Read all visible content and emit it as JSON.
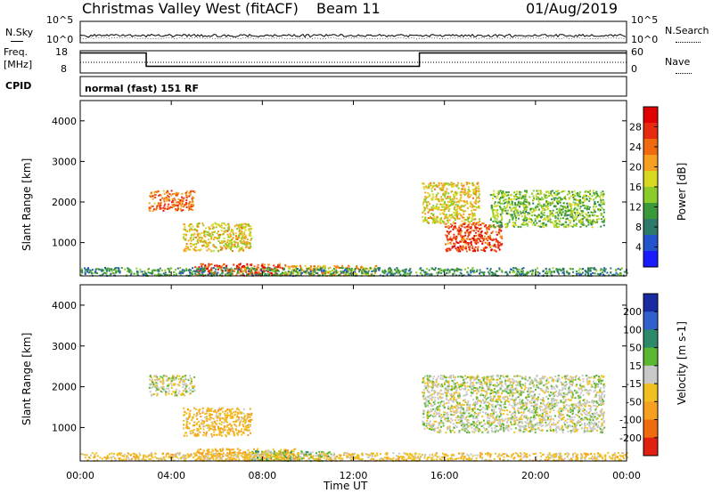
{
  "header": {
    "station": "Christmas Valley West (fitACF)",
    "beam": "Beam 11",
    "date": "01/Aug/2019"
  },
  "strips": {
    "nsky": {
      "label": "N.Sky",
      "left_ticks": [
        "10^5",
        "10^0"
      ],
      "right_label": "N.Search",
      "right_ticks": [
        "10^5",
        "10^0"
      ]
    },
    "freq": {
      "label_line1": "Freq.",
      "label_line2": "[MHz]",
      "left_ticks": [
        "18",
        "8"
      ],
      "right_label": "Nave",
      "right_ticks": [
        "60",
        "0"
      ],
      "steps": [
        [
          0.0,
          17.0
        ],
        [
          2.9,
          11.0
        ],
        [
          14.9,
          17.0
        ],
        [
          24.0,
          17.0
        ]
      ]
    },
    "cpid": {
      "label": "CPID",
      "value": "normal (fast) 151 RF"
    }
  },
  "chart_data": [
    {
      "type": "heatmap",
      "title": "",
      "parameter": "Power",
      "xlabel": "Time UT",
      "ylabel": "Slant Range [km]",
      "xlim": [
        0,
        24
      ],
      "ylim": [
        180,
        4500
      ],
      "x_ticks": [
        "00:00",
        "04:00",
        "08:00",
        "12:00",
        "16:00",
        "20:00",
        "00:00"
      ],
      "y_ticks": [
        "1000",
        "2000",
        "3000",
        "4000"
      ],
      "colorbar": {
        "label": "Power [dB]",
        "ticks": [
          "4",
          "8",
          "12",
          "16",
          "20",
          "24",
          "28"
        ],
        "range": [
          0,
          32
        ],
        "colors": [
          "#1a1aff",
          "#2255cc",
          "#2d7a6a",
          "#3a9a3a",
          "#8ccc2a",
          "#d8d820",
          "#f5a020",
          "#f06a10",
          "#e82a10",
          "#e00000"
        ]
      },
      "regions": [
        {
          "t0": 3.0,
          "t1": 5.0,
          "r0": 1800,
          "r1": 2300,
          "level": 24
        },
        {
          "t0": 4.5,
          "t1": 7.5,
          "r0": 800,
          "r1": 1500,
          "level": 18
        },
        {
          "t0": 5.0,
          "t1": 9.0,
          "r0": 200,
          "r1": 500,
          "level": 26
        },
        {
          "t0": 9.0,
          "t1": 13.0,
          "r0": 200,
          "r1": 450,
          "level": 20
        },
        {
          "t0": 15.0,
          "t1": 17.5,
          "r0": 1500,
          "r1": 2500,
          "level": 18
        },
        {
          "t0": 16.0,
          "t1": 18.5,
          "r0": 800,
          "r1": 1500,
          "level": 26
        },
        {
          "t0": 18.0,
          "t1": 23.0,
          "r0": 1400,
          "r1": 2300,
          "level": 14
        },
        {
          "t0": 0.0,
          "t1": 24.0,
          "r0": 200,
          "r1": 400,
          "level": 10
        }
      ]
    },
    {
      "type": "heatmap",
      "title": "",
      "parameter": "Velocity",
      "xlabel": "Time UT",
      "ylabel": "Slant Range [km]",
      "xlim": [
        0,
        24
      ],
      "ylim": [
        180,
        4500
      ],
      "x_ticks": [
        "00:00",
        "04:00",
        "08:00",
        "12:00",
        "16:00",
        "20:00",
        "00:00"
      ],
      "y_ticks": [
        "1000",
        "2000",
        "3000",
        "4000"
      ],
      "colorbar": {
        "label": "Velocity [m s-1]",
        "ticks": [
          "200",
          "100",
          "50",
          "15",
          "-15",
          "-50",
          "-100",
          "-200"
        ],
        "colors": [
          "#1a2aa0",
          "#2f60cc",
          "#2c8a6a",
          "#5ab830",
          "#c8c8c8",
          "#f0c020",
          "#f5a020",
          "#f06a10",
          "#e02010"
        ]
      },
      "regions": [
        {
          "t0": 3.0,
          "t1": 5.0,
          "r0": 1800,
          "r1": 2300,
          "level": 0
        },
        {
          "t0": 4.5,
          "t1": 7.5,
          "r0": 800,
          "r1": 1500,
          "level": -40
        },
        {
          "t0": 5.0,
          "t1": 9.5,
          "r0": 200,
          "r1": 500,
          "level": -50
        },
        {
          "t0": 7.5,
          "t1": 11.0,
          "r0": 200,
          "r1": 450,
          "level": 30
        },
        {
          "t0": 15.0,
          "t1": 23.0,
          "r0": 900,
          "r1": 2300,
          "level": 0
        },
        {
          "t0": 0.0,
          "t1": 24.0,
          "r0": 200,
          "r1": 400,
          "level": -30
        }
      ]
    }
  ]
}
